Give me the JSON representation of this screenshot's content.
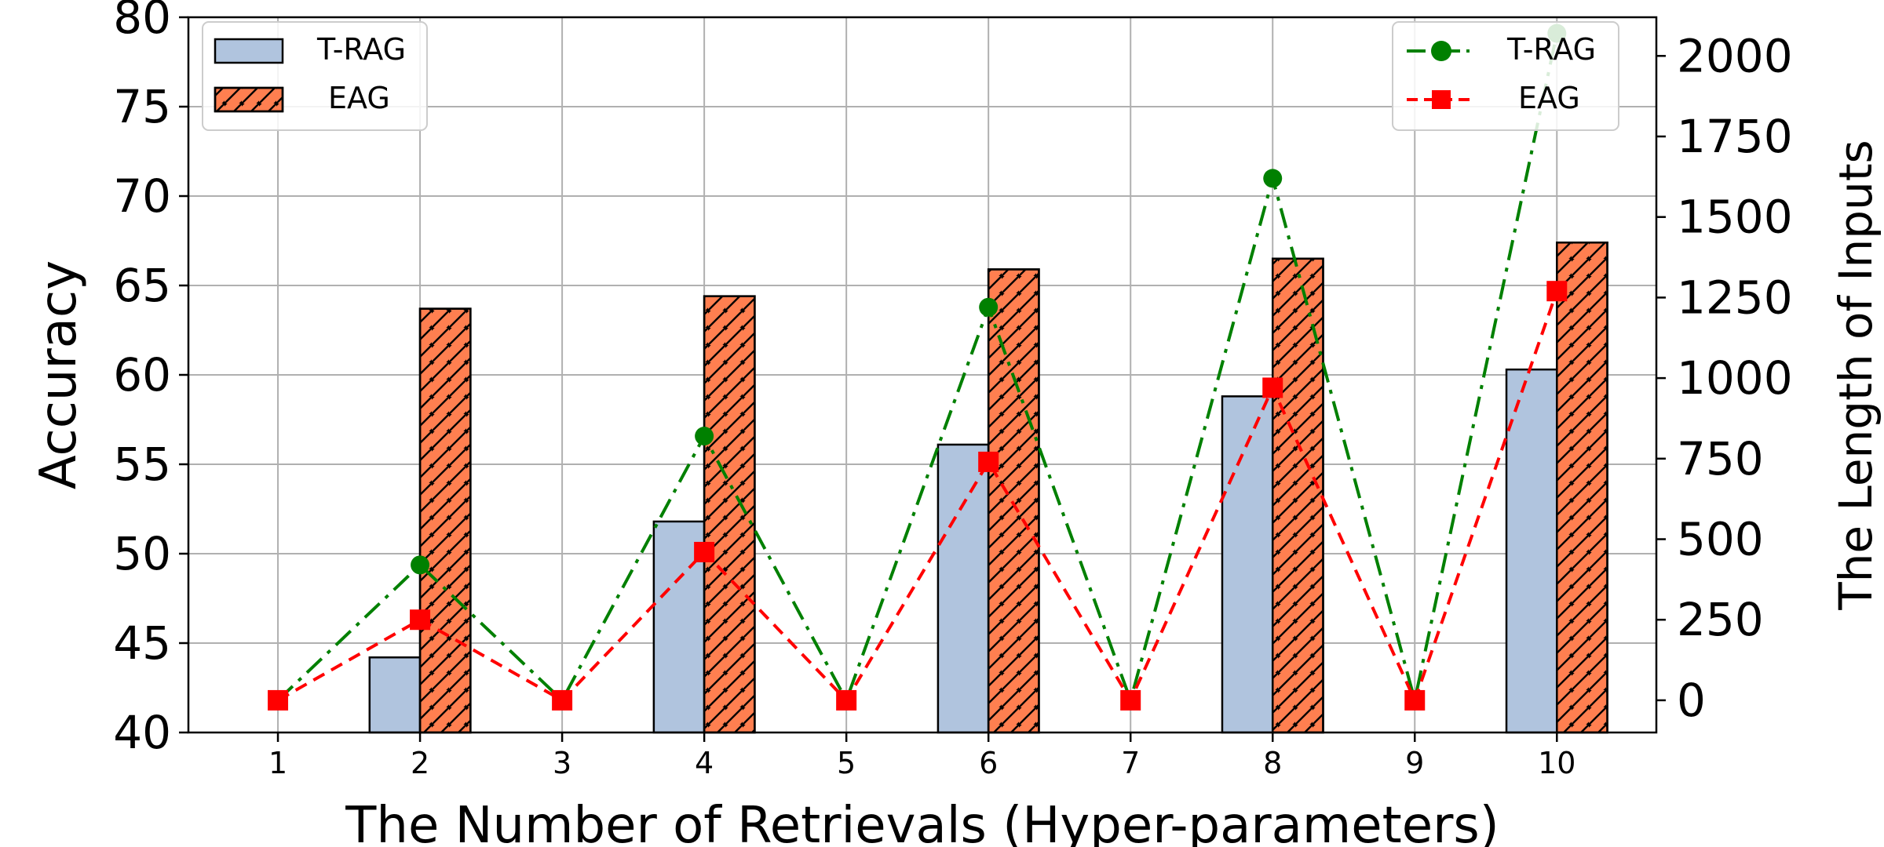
{
  "chart_data": {
    "type": "bar",
    "categories": [
      "1",
      "2",
      "3",
      "4",
      "5",
      "6",
      "7",
      "8",
      "9",
      "10"
    ],
    "xlabel": "The Number of Retrievals (Hyper-parameters)",
    "ylabel": "Accuracy",
    "y2label": "The Length of Inputs",
    "ylim": [
      40,
      80
    ],
    "y2lim": [
      -100,
      2120
    ],
    "yticks": [
      40,
      45,
      50,
      55,
      60,
      65,
      70,
      75,
      80
    ],
    "y2ticks": [
      0,
      250,
      500,
      750,
      1000,
      1250,
      1500,
      1750,
      2000
    ],
    "grid": true,
    "bar_series": [
      {
        "name": "T-RAG",
        "color": "#b0c4de",
        "hatch": false,
        "values": [
          null,
          44.2,
          null,
          51.8,
          null,
          56.1,
          null,
          58.8,
          null,
          60.3
        ]
      },
      {
        "name": "EAG",
        "color": "#ff7f50",
        "hatch": true,
        "values": [
          null,
          63.7,
          null,
          64.4,
          null,
          65.9,
          null,
          66.5,
          null,
          67.4
        ]
      }
    ],
    "line_series": [
      {
        "name": "T-RAG",
        "color": "#008000",
        "marker": "circle",
        "dash": "dash-dot",
        "values": [
          0,
          420,
          0,
          820,
          0,
          1220,
          0,
          1620,
          0,
          2070
        ]
      },
      {
        "name": "EAG",
        "color": "#ff0000",
        "marker": "square",
        "dash": "dashed",
        "values": [
          0,
          250,
          0,
          460,
          0,
          740,
          0,
          970,
          0,
          1270
        ]
      }
    ],
    "legend_left": [
      "T-RAG",
      "EAG"
    ],
    "legend_right": [
      "T-RAG",
      "EAG"
    ],
    "legend_left_position": "top-left",
    "legend_right_position": "top-right"
  }
}
